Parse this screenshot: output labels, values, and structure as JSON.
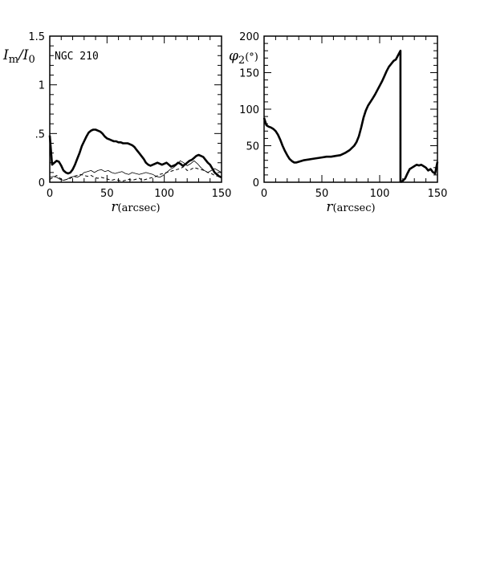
{
  "chart_data": [
    {
      "type": "line",
      "annotation": "NGC 210",
      "ylabel": "I_m/I_0",
      "xlabel": "r(arcsec)",
      "xlim": [
        0,
        150
      ],
      "ylim": [
        0,
        1.5
      ],
      "xticks": [
        "0",
        "50",
        "100",
        "150"
      ],
      "yticks": [
        "0",
        ".5",
        "1",
        "1.5"
      ],
      "series": [
        {
          "style": "thick-solid",
          "x": [
            0,
            2,
            4,
            6,
            8,
            10,
            12,
            14,
            16,
            18,
            20,
            22,
            24,
            26,
            28,
            30,
            32,
            34,
            36,
            38,
            40,
            42,
            44,
            46,
            48,
            50,
            52,
            54,
            56,
            58,
            60,
            62,
            64,
            66,
            68,
            70,
            72,
            74,
            76,
            78,
            80,
            82,
            84,
            86,
            88,
            90,
            92,
            94,
            96,
            98,
            100,
            102,
            104,
            106,
            108,
            110,
            112,
            114,
            116,
            118,
            120,
            122,
            124,
            126,
            128,
            130,
            132,
            134,
            136,
            138,
            140,
            142,
            144,
            146,
            148,
            150
          ],
          "values": [
            0.48,
            0.18,
            0.2,
            0.22,
            0.21,
            0.17,
            0.12,
            0.1,
            0.09,
            0.1,
            0.13,
            0.18,
            0.24,
            0.3,
            0.37,
            0.42,
            0.47,
            0.51,
            0.53,
            0.54,
            0.54,
            0.53,
            0.52,
            0.5,
            0.47,
            0.45,
            0.44,
            0.43,
            0.42,
            0.42,
            0.41,
            0.41,
            0.4,
            0.4,
            0.4,
            0.39,
            0.38,
            0.36,
            0.33,
            0.3,
            0.27,
            0.24,
            0.2,
            0.18,
            0.17,
            0.18,
            0.19,
            0.2,
            0.19,
            0.18,
            0.19,
            0.2,
            0.18,
            0.16,
            0.17,
            0.18,
            0.2,
            0.19,
            0.17,
            0.18,
            0.2,
            0.22,
            0.23,
            0.25,
            0.27,
            0.28,
            0.27,
            0.26,
            0.23,
            0.2,
            0.18,
            0.14,
            0.1,
            0.08,
            0.06,
            0.05
          ]
        },
        {
          "style": "thin-solid",
          "x": [
            0,
            3,
            6,
            9,
            12,
            15,
            18,
            21,
            24,
            27,
            30,
            33,
            36,
            39,
            42,
            45,
            48,
            51,
            54,
            57,
            60,
            63,
            66,
            69,
            72,
            75,
            78,
            81,
            84,
            87,
            90,
            93,
            96,
            99,
            102,
            105,
            108,
            111,
            114,
            117,
            120,
            123,
            126,
            129,
            132,
            135,
            138,
            141,
            144,
            147,
            150
          ],
          "values": [
            0.05,
            0.06,
            0.05,
            0.03,
            0.02,
            0.03,
            0.05,
            0.06,
            0.05,
            0.07,
            0.1,
            0.11,
            0.12,
            0.1,
            0.12,
            0.13,
            0.11,
            0.12,
            0.1,
            0.09,
            0.1,
            0.11,
            0.09,
            0.08,
            0.1,
            0.09,
            0.08,
            0.09,
            0.1,
            0.09,
            0.08,
            0.06,
            0.05,
            0.07,
            0.1,
            0.13,
            0.15,
            0.18,
            0.22,
            0.2,
            0.17,
            0.19,
            0.22,
            0.19,
            0.15,
            0.12,
            0.1,
            0.12,
            0.14,
            0.12,
            0.1
          ]
        },
        {
          "style": "dashed",
          "x": [
            0,
            3,
            6,
            9,
            12,
            15,
            18,
            21,
            24,
            27,
            30,
            33,
            36,
            39,
            42,
            45,
            48,
            51,
            54,
            57,
            60,
            63,
            66,
            69,
            72,
            75,
            78,
            81,
            84,
            87,
            90,
            93,
            96,
            99,
            102,
            105,
            108,
            111,
            114,
            117,
            120,
            123,
            126,
            129,
            132,
            135,
            138,
            141,
            144,
            147,
            150
          ],
          "values": [
            0.03,
            0.05,
            0.07,
            0.04,
            0.02,
            0.03,
            0.04,
            0.06,
            0.07,
            0.08,
            0.07,
            0.06,
            0.07,
            0.05,
            0.04,
            0.05,
            0.04,
            0.03,
            0.02,
            0.03,
            0.02,
            0.01,
            0.02,
            0.03,
            0.02,
            0.03,
            0.04,
            0.02,
            0.03,
            0.04,
            0.05,
            0.06,
            0.08,
            0.09,
            0.1,
            0.11,
            0.12,
            0.13,
            0.14,
            0.16,
            0.12,
            0.13,
            0.15,
            0.14,
            0.13,
            0.12,
            0.1,
            0.09,
            0.07,
            0.06,
            0.05
          ]
        }
      ]
    },
    {
      "type": "line",
      "ylabel": "φ2(°)",
      "xlabel": "r(arcsec)",
      "xlim": [
        0,
        150
      ],
      "ylim": [
        0,
        200
      ],
      "xticks": [
        "0",
        "50",
        "100",
        "150"
      ],
      "yticks": [
        "0",
        "50",
        "100",
        "150",
        "200"
      ],
      "series": [
        {
          "style": "thick-solid",
          "x": [
            0,
            2,
            4,
            6,
            8,
            10,
            12,
            14,
            16,
            18,
            20,
            22,
            24,
            26,
            28,
            30,
            34,
            38,
            42,
            46,
            50,
            54,
            58,
            62,
            66,
            70,
            74,
            78,
            80,
            82,
            84,
            86,
            88,
            90,
            92,
            94,
            96,
            98,
            100,
            102,
            104,
            106,
            108,
            110,
            112,
            114,
            116,
            118,
            118.01
          ],
          "values": [
            88,
            78,
            76,
            75,
            73,
            70,
            65,
            58,
            50,
            43,
            37,
            32,
            29,
            27,
            27,
            28,
            30,
            31,
            32,
            33,
            34,
            35,
            35,
            36,
            37,
            40,
            44,
            50,
            55,
            63,
            75,
            88,
            98,
            105,
            110,
            115,
            120,
            126,
            132,
            138,
            145,
            152,
            158,
            162,
            166,
            168,
            174,
            180,
            0
          ]
        },
        {
          "style": "thick-solid",
          "x": [
            118,
            120,
            122,
            124,
            126,
            128,
            130,
            132,
            134,
            136,
            138,
            140,
            142,
            144,
            146,
            148,
            150
          ],
          "values": [
            0,
            2,
            5,
            12,
            18,
            20,
            22,
            24,
            23,
            24,
            22,
            20,
            16,
            18,
            14,
            12,
            28
          ]
        }
      ]
    }
  ]
}
